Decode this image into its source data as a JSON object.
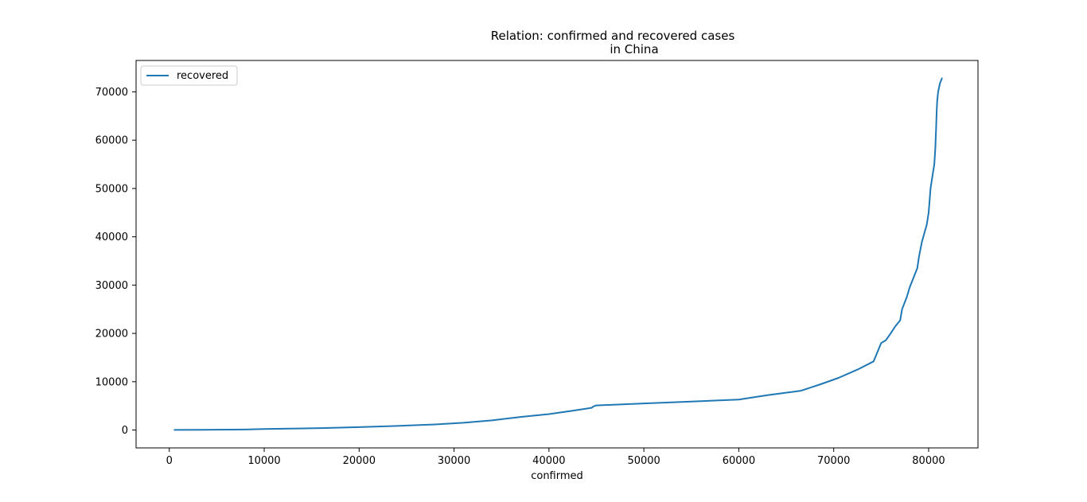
{
  "chart_data": {
    "type": "line",
    "title": [
      "Relation: confirmed and recovered cases",
      "in China"
    ],
    "xlabel": "confirmed",
    "ylabel": "",
    "xlim": [
      -3500,
      85200
    ],
    "ylim": [
      -3700,
      76500
    ],
    "xticks": [
      0,
      10000,
      20000,
      30000,
      40000,
      50000,
      60000,
      70000,
      80000
    ],
    "xtick_labels": [
      "0",
      "10000",
      "20000",
      "30000",
      "40000",
      "50000",
      "60000",
      "70000",
      "80000"
    ],
    "yticks": [
      0,
      10000,
      20000,
      30000,
      40000,
      50000,
      60000,
      70000
    ],
    "ytick_labels": [
      "0",
      "10000",
      "20000",
      "30000",
      "40000",
      "50000",
      "60000",
      "70000"
    ],
    "grid": false,
    "legend_position": "upper left",
    "series": [
      {
        "name": "recovered",
        "color": "#1f77b4",
        "x": [
          548,
          8000,
          10000,
          16000,
          20000,
          24000,
          28000,
          31000,
          34000,
          37000,
          40000,
          42500,
          44500,
          44700,
          45000,
          50000,
          55000,
          60000,
          63000,
          66500,
          68500,
          70500,
          72500,
          74200,
          75000,
          75500,
          76000,
          76500,
          77000,
          77200,
          77700,
          78000,
          78500,
          78800,
          79000,
          79300,
          79800,
          80000,
          80200,
          80400,
          80600,
          80700,
          80800,
          80850,
          80900,
          81000,
          81200,
          81400
        ],
        "y": [
          28,
          100,
          200,
          400,
          600,
          850,
          1150,
          1500,
          2000,
          2700,
          3300,
          4000,
          4600,
          4900,
          5100,
          5500,
          5900,
          6300,
          7200,
          8100,
          9400,
          10800,
          12500,
          14200,
          18000,
          18600,
          20000,
          21500,
          22700,
          25000,
          27500,
          29500,
          32000,
          33500,
          36000,
          39000,
          42500,
          45000,
          50000,
          52500,
          55000,
          58000,
          63000,
          66000,
          68000,
          70000,
          71800,
          72800
        ]
      }
    ]
  }
}
